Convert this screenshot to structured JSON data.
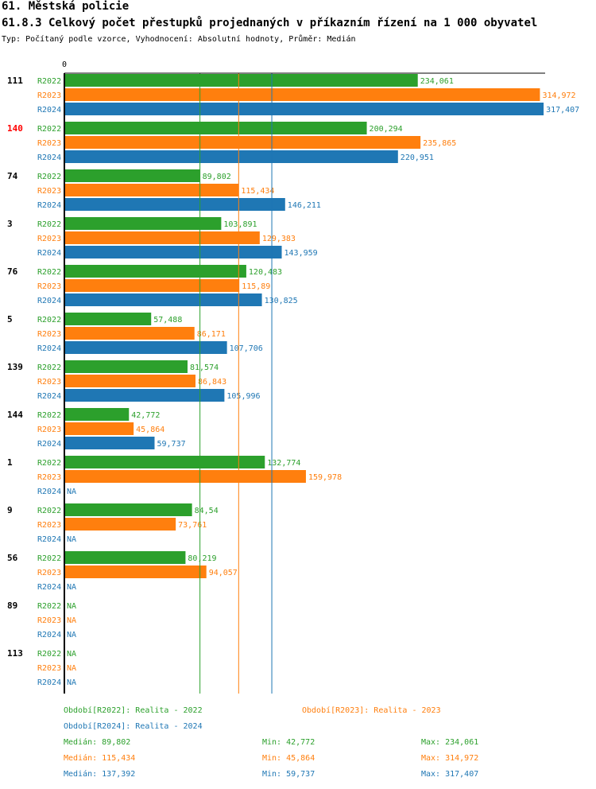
{
  "header": {
    "title1": "61. Městská policie",
    "title2": "61.8.3 Celkový počet přestupků projednaných v příkazním řízení na 1 000 obyvatel",
    "subtitle": "Typ: Počítaný podle vzorce, Vyhodnocení: Absolutní hodnoty, Průměr: Medián"
  },
  "colors": {
    "R2022": "#2ca02c",
    "R2023": "#ff7f0e",
    "R2024": "#1f77b4",
    "highlight": "#ff0000",
    "axis": "#000000"
  },
  "chart_data": {
    "type": "bar",
    "orientation": "horizontal",
    "x_axis_zero_label": "0",
    "xlim": [
      0,
      317.407
    ],
    "highlight_group": "140",
    "series_names": [
      "R2022",
      "R2023",
      "R2024"
    ],
    "groups": [
      {
        "name": "111",
        "values": [
          234.061,
          314.972,
          317.407
        ],
        "labels": [
          "234,061",
          "314,972",
          "317,407"
        ]
      },
      {
        "name": "140",
        "values": [
          200.294,
          235.865,
          220.951
        ],
        "labels": [
          "200,294",
          "235,865",
          "220,951"
        ]
      },
      {
        "name": "74",
        "values": [
          89.802,
          115.434,
          146.211
        ],
        "labels": [
          "89,802",
          "115,434",
          "146,211"
        ]
      },
      {
        "name": "3",
        "values": [
          103.891,
          129.383,
          143.959
        ],
        "labels": [
          "103,891",
          "129,383",
          "143,959"
        ]
      },
      {
        "name": "76",
        "values": [
          120.483,
          115.89,
          130.825
        ],
        "labels": [
          "120,483",
          "115,89",
          "130,825"
        ]
      },
      {
        "name": "5",
        "values": [
          57.488,
          86.171,
          107.706
        ],
        "labels": [
          "57,488",
          "86,171",
          "107,706"
        ]
      },
      {
        "name": "139",
        "values": [
          81.574,
          86.843,
          105.996
        ],
        "labels": [
          "81,574",
          "86,843",
          "105,996"
        ]
      },
      {
        "name": "144",
        "values": [
          42.772,
          45.864,
          59.737
        ],
        "labels": [
          "42,772",
          "45,864",
          "59,737"
        ]
      },
      {
        "name": "1",
        "values": [
          132.774,
          159.978,
          null
        ],
        "labels": [
          "132,774",
          "159,978",
          "NA"
        ]
      },
      {
        "name": "9",
        "values": [
          84.54,
          73.761,
          null
        ],
        "labels": [
          "84,54",
          "73,761",
          "NA"
        ]
      },
      {
        "name": "56",
        "values": [
          80.219,
          94.057,
          null
        ],
        "labels": [
          "80,219",
          "94,057",
          "NA"
        ]
      },
      {
        "name": "89",
        "values": [
          null,
          null,
          null
        ],
        "labels": [
          "NA",
          "NA",
          "NA"
        ]
      },
      {
        "name": "113",
        "values": [
          null,
          null,
          null
        ],
        "labels": [
          "NA",
          "NA",
          "NA"
        ]
      }
    ],
    "median_lines": [
      89.802,
      115.434,
      137.392
    ]
  },
  "legend": {
    "period_2022": "Období[R2022]: Realita - 2022",
    "period_2023": "Období[R2023]: Realita - 2023",
    "period_2024": "Období[R2024]: Realita - 2024",
    "stats": [
      {
        "median": "Medián: 89,802",
        "min": "Min: 42,772",
        "max": "Max: 234,061"
      },
      {
        "median": "Medián: 115,434",
        "min": "Min: 45,864",
        "max": "Max: 314,972"
      },
      {
        "median": "Medián: 137,392",
        "min": "Min: 59,737",
        "max": "Max: 317,407"
      }
    ]
  }
}
